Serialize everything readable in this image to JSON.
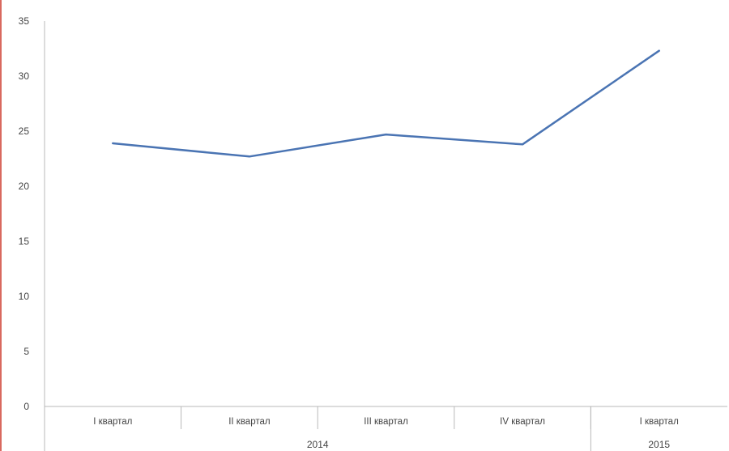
{
  "colors": {
    "line": "#4a74b3",
    "axis": "#b8b8b8",
    "left_border": "#d9695f"
  },
  "chart_data": {
    "type": "line",
    "title": "",
    "xlabel": "",
    "ylabel": "",
    "ylim": [
      0,
      35
    ],
    "yticks": [
      0,
      5,
      10,
      15,
      20,
      25,
      30,
      35
    ],
    "grid": false,
    "legend": "none",
    "categories": [
      "I квартал",
      "II квартал",
      "III квартал",
      "IV квартал",
      "I квартал"
    ],
    "groups": [
      {
        "label": "2014",
        "span": 4
      },
      {
        "label": "2015",
        "span": 1
      }
    ],
    "series": [
      {
        "values": [
          23.9,
          22.7,
          24.7,
          23.8,
          32.3
        ]
      }
    ]
  }
}
